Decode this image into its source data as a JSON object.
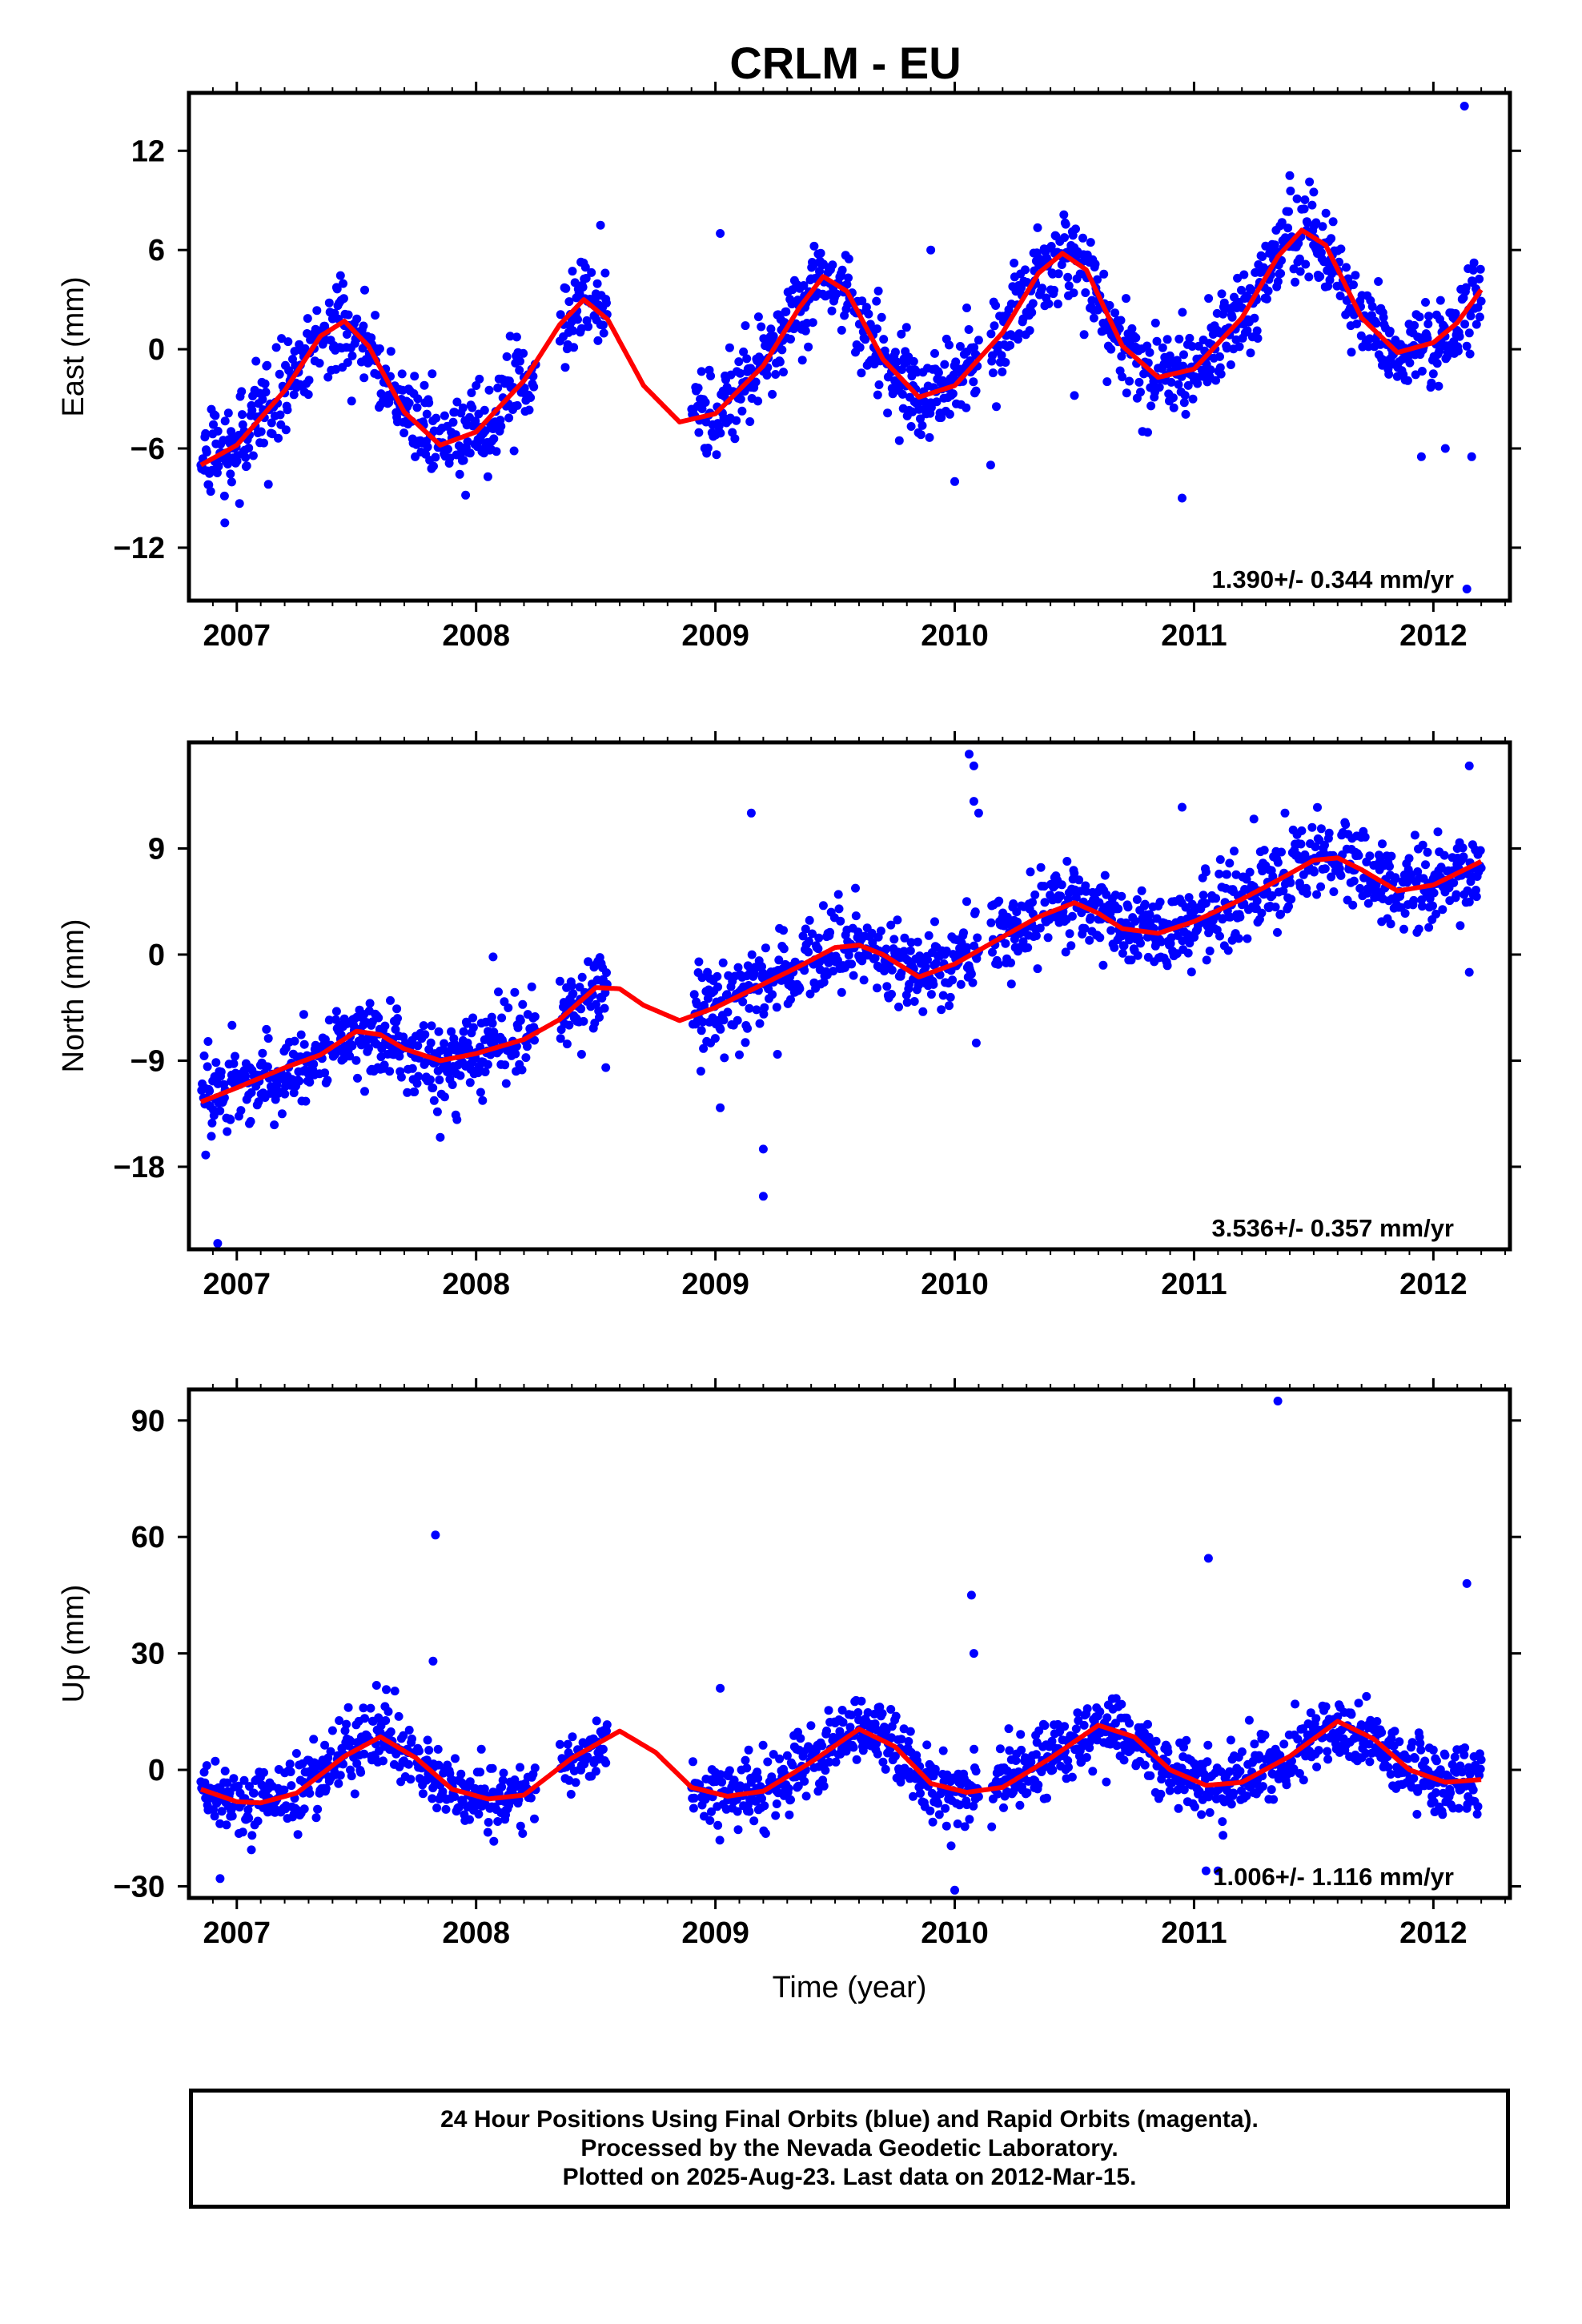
{
  "title": "CRLM - EU",
  "footer": {
    "line1": "24 Hour Positions Using Final Orbits (blue) and Rapid Orbits (magenta).",
    "line2": "Processed by the Nevada Geodetic Laboratory.",
    "line3": "Plotted on 2025-Aug-23. Last data on 2012-Mar-15."
  },
  "colors": {
    "points": "#0000ff",
    "fit": "#ff0000",
    "axes": "#000000"
  },
  "chart_data": [
    {
      "type": "scatter",
      "ylabel": "East (mm)",
      "xlabel": "",
      "rate_label": "1.390+/- 0.344 mm/yr",
      "xlim": [
        2006.8,
        2012.32
      ],
      "ylim": [
        -15.2,
        15.5
      ],
      "yticks": [
        12,
        6,
        0,
        -6,
        -12
      ],
      "ytick_labels": [
        "12",
        "6",
        "0",
        "-6",
        "-12"
      ],
      "xticks": [
        2007,
        2008,
        2009,
        2010,
        2011,
        2012
      ],
      "xtick_labels": [
        "2007",
        "2008",
        "2009",
        "2010",
        "2011",
        "2012"
      ],
      "grid": false,
      "data_gaps": [
        [
          2008.25,
          2008.35
        ],
        [
          2008.55,
          2008.9
        ],
        [
          2010.1,
          2010.15
        ]
      ],
      "fit": {
        "x": [
          2006.85,
          2007.0,
          2007.2,
          2007.35,
          2007.45,
          2007.55,
          2007.7,
          2007.85,
          2008.0,
          2008.2,
          2008.35,
          2008.45,
          2008.55,
          2008.7,
          2008.85,
          2009.0,
          2009.2,
          2009.35,
          2009.45,
          2009.55,
          2009.7,
          2009.85,
          2010.0,
          2010.2,
          2010.35,
          2010.45,
          2010.55,
          2010.7,
          2010.85,
          2011.0,
          2011.2,
          2011.35,
          2011.45,
          2011.55,
          2011.7,
          2011.85,
          2012.0,
          2012.1,
          2012.2
        ],
        "y": [
          -7.0,
          -5.8,
          -2.5,
          0.8,
          1.7,
          0.2,
          -3.8,
          -5.8,
          -5.0,
          -1.9,
          1.5,
          3.0,
          1.8,
          -2.2,
          -4.4,
          -3.9,
          -1.0,
          2.5,
          4.4,
          3.5,
          -0.6,
          -2.9,
          -2.2,
          1.0,
          4.6,
          5.8,
          4.8,
          0.2,
          -1.7,
          -1.2,
          1.9,
          5.6,
          7.2,
          6.3,
          1.9,
          -0.2,
          0.4,
          1.6,
          3.6
        ]
      },
      "outliers": {
        "x": [
          2006.95,
          2008.52,
          2009.02,
          2009.9,
          2010.0,
          2010.05,
          2010.15,
          2010.5,
          2010.95,
          2011.4,
          2011.5,
          2011.95,
          2012.05,
          2012.13,
          2012.16,
          2012.14
        ],
        "y": [
          -10.5,
          7.5,
          7.0,
          6.0,
          -8.0,
          2.5,
          -7.0,
          -2.8,
          -9.0,
          10.5,
          9.5,
          -6.5,
          -6.0,
          14.7,
          -6.5,
          -14.5
        ]
      }
    },
    {
      "type": "scatter",
      "ylabel": "North (mm)",
      "xlabel": "",
      "rate_label": "3.536+/- 0.357 mm/yr",
      "xlim": [
        2006.8,
        2012.32
      ],
      "ylim": [
        -25,
        18
      ],
      "yticks": [
        9,
        0,
        -9,
        -18
      ],
      "ytick_labels": [
        "9",
        "0",
        "-9",
        "-18"
      ],
      "xticks": [
        2007,
        2008,
        2009,
        2010,
        2011,
        2012
      ],
      "xtick_labels": [
        "2007",
        "2008",
        "2009",
        "2010",
        "2011",
        "2012"
      ],
      "grid": false,
      "data_gaps": [
        [
          2008.25,
          2008.35
        ],
        [
          2008.55,
          2008.9
        ],
        [
          2010.1,
          2010.15
        ]
      ],
      "fit": {
        "x": [
          2006.85,
          2007.0,
          2007.2,
          2007.35,
          2007.5,
          2007.6,
          2007.7,
          2007.85,
          2008.0,
          2008.2,
          2008.35,
          2008.5,
          2008.6,
          2008.7,
          2008.85,
          2009.0,
          2009.2,
          2009.35,
          2009.5,
          2009.6,
          2009.7,
          2009.85,
          2010.0,
          2010.2,
          2010.35,
          2010.5,
          2010.6,
          2010.7,
          2010.85,
          2011.0,
          2011.2,
          2011.35,
          2011.5,
          2011.6,
          2011.7,
          2011.85,
          2012.0,
          2012.1,
          2012.2
        ],
        "y": [
          -12.5,
          -11.3,
          -9.6,
          -8.5,
          -6.5,
          -6.8,
          -8.0,
          -9.0,
          -8.4,
          -7.2,
          -5.5,
          -2.8,
          -2.9,
          -4.3,
          -5.6,
          -4.5,
          -2.5,
          -1.0,
          0.6,
          0.8,
          0.0,
          -1.9,
          -0.8,
          1.5,
          3.2,
          4.4,
          3.5,
          2.2,
          1.8,
          2.8,
          4.7,
          6.3,
          8.0,
          8.2,
          7.2,
          5.4,
          5.9,
          6.9,
          7.9
        ]
      },
      "outliers": {
        "x": [
          2006.87,
          2006.92,
          2006.98,
          2007.85,
          2007.92,
          2008.05,
          2009.15,
          2009.2,
          2009.2,
          2009.02,
          2009.1,
          2010.06,
          2010.08,
          2010.08,
          2010.1,
          2010.05,
          2010.09,
          2010.95,
          2011.05,
          2011.25,
          2011.38,
          2011.45,
          2012.15,
          2012.15,
          2012.1
        ],
        "y": [
          -17.0,
          -24.5,
          -6.0,
          -15.5,
          -14.0,
          -6.5,
          12.0,
          -16.5,
          -20.5,
          -13.0,
          -8.5,
          17.0,
          16.0,
          13.0,
          12.0,
          4.5,
          -7.5,
          12.5,
          7.0,
          11.5,
          12.0,
          10.5,
          16.0,
          -1.5,
          9.0
        ]
      }
    },
    {
      "type": "scatter",
      "ylabel": "Up (mm)",
      "xlabel": "Time (year)",
      "rate_label": "1.006+/- 1.116 mm/yr",
      "xlim": [
        2006.8,
        2012.32
      ],
      "ylim": [
        -33,
        98
      ],
      "yticks": [
        90,
        60,
        30,
        0,
        -30
      ],
      "ytick_labels": [
        "90",
        "60",
        "30",
        "0",
        "-30"
      ],
      "xticks": [
        2007,
        2008,
        2009,
        2010,
        2011,
        2012
      ],
      "xtick_labels": [
        "2007",
        "2008",
        "2009",
        "2010",
        "2011",
        "2012"
      ],
      "grid": false,
      "data_gaps": [
        [
          2008.25,
          2008.35
        ],
        [
          2008.55,
          2008.9
        ],
        [
          2010.1,
          2010.15
        ]
      ],
      "fit": {
        "x": [
          2006.85,
          2007.0,
          2007.1,
          2007.25,
          2007.45,
          2007.6,
          2007.75,
          2007.9,
          2008.05,
          2008.2,
          2008.4,
          2008.6,
          2008.75,
          2008.9,
          2009.05,
          2009.2,
          2009.4,
          2009.6,
          2009.75,
          2009.9,
          2010.05,
          2010.2,
          2010.4,
          2010.6,
          2010.75,
          2010.9,
          2011.05,
          2011.2,
          2011.4,
          2011.6,
          2011.75,
          2011.9,
          2012.05,
          2012.2
        ],
        "y": [
          -5.0,
          -8.2,
          -8.5,
          -6.0,
          3.5,
          8.5,
          3.0,
          -5.0,
          -7.5,
          -6.5,
          3.0,
          10.0,
          4.5,
          -4.5,
          -6.8,
          -5.5,
          2.0,
          10.5,
          6.0,
          -3.5,
          -5.8,
          -4.5,
          3.0,
          11.5,
          8.5,
          0.0,
          -4.0,
          -3.2,
          3.5,
          12.5,
          8.0,
          0.0,
          -3.2,
          -2.5
        ]
      },
      "outliers": {
        "x": [
          2007.83,
          2007.82,
          2009.02,
          2010.07,
          2010.08,
          2011.06,
          2011.35,
          2012.14,
          2006.93,
          2010.0,
          2011.05,
          2011.1
        ],
        "y": [
          60.5,
          28.0,
          21.0,
          45.0,
          30.0,
          54.5,
          95.0,
          48.0,
          -28.0,
          -31.0,
          -26.0,
          -26.0
        ]
      }
    }
  ]
}
